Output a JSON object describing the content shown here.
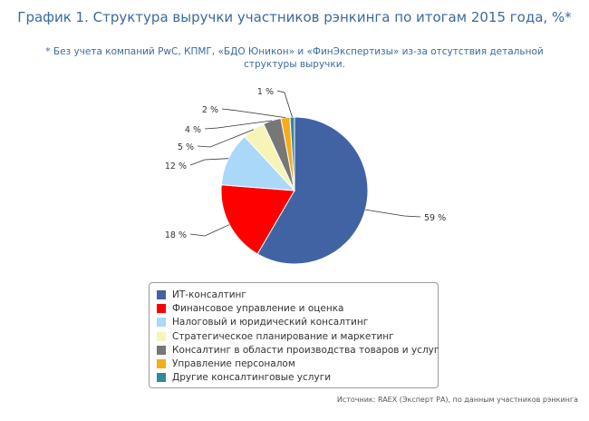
{
  "header": {
    "title": "График 1. Структура выручки участников рэнкинга по итогам 2015 года, %*",
    "subtitle": "* Без учета компаний PwC, КПМГ, «БДО Юникон» и «ФинЭкспертизы» из-за отсутствия детальной структуры выручки."
  },
  "footer": {
    "source": "Источник: RAEX (Эксперт РА), по данным участников рэнкинга"
  },
  "chart_data": {
    "type": "pie",
    "legend_position": "bottom",
    "categories": [
      "ИТ-консалтинг",
      "Финансовое управление и оценка",
      "Налоговый и юридический консалтинг",
      "Стратегическое планирование и маркетинг",
      "Консалтинг в области производства товаров и услуг",
      "Управление персоналом",
      "Другие консалтинговые услуги"
    ],
    "values": [
      59,
      18,
      12,
      5,
      4,
      2,
      1
    ],
    "labels": [
      "59 %",
      "18 %",
      "12 %",
      "5 %",
      "4 %",
      "2 %",
      "1 %"
    ],
    "colors": [
      "#4263a3",
      "#ff0000",
      "#aad8f8",
      "#f7f4b8",
      "#777777",
      "#f6ac1a",
      "#2f8a9c"
    ]
  }
}
